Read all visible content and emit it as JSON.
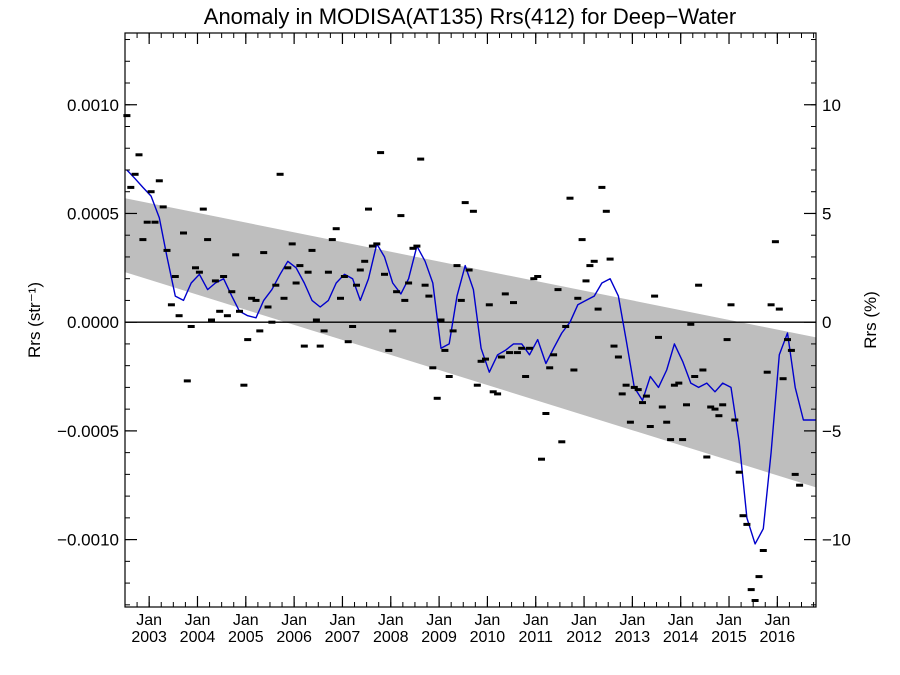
{
  "chart_data": {
    "type": "scatter",
    "title": "Anomaly in MODISA(AT135) Rrs(412) for Deep−Water",
    "ylabel_left": "Rrs (str⁻¹)",
    "ylabel_right": "Rrs (%)",
    "xlim": [
      2002.5,
      2016.8
    ],
    "ylim": [
      -0.00131,
      0.00133
    ],
    "ylim_right_percent": [
      -13.1,
      13.3
    ],
    "y_ticks": [
      {
        "value": 0.001,
        "label": "0.0010"
      },
      {
        "value": 0.0005,
        "label": "0.0005"
      },
      {
        "value": 0.0,
        "label": "0.0000"
      },
      {
        "value": -0.0005,
        "label": "−0.0005"
      },
      {
        "value": -0.001,
        "label": "−0.0010"
      }
    ],
    "y_right_ticks": [
      {
        "value": 10,
        "label": "10"
      },
      {
        "value": 5,
        "label": "5"
      },
      {
        "value": 0,
        "label": "0"
      },
      {
        "value": -5,
        "label": "−5"
      },
      {
        "value": -10,
        "label": "−10"
      }
    ],
    "x_ticks": [
      {
        "year": 2003,
        "month_label": "Jan",
        "year_label": "2003"
      },
      {
        "year": 2004,
        "month_label": "Jan",
        "year_label": "2004"
      },
      {
        "year": 2005,
        "month_label": "Jan",
        "year_label": "2005"
      },
      {
        "year": 2006,
        "month_label": "Jan",
        "year_label": "2006"
      },
      {
        "year": 2007,
        "month_label": "Jan",
        "year_label": "2007"
      },
      {
        "year": 2008,
        "month_label": "Jan",
        "year_label": "2008"
      },
      {
        "year": 2009,
        "month_label": "Jan",
        "year_label": "2009"
      },
      {
        "year": 2010,
        "month_label": "Jan",
        "year_label": "2010"
      },
      {
        "year": 2011,
        "month_label": "Jan",
        "year_label": "2011"
      },
      {
        "year": 2012,
        "month_label": "Jan",
        "year_label": "2012"
      },
      {
        "year": 2013,
        "month_label": "Jan",
        "year_label": "2013"
      },
      {
        "year": 2014,
        "month_label": "Jan",
        "year_label": "2014"
      },
      {
        "year": 2015,
        "month_label": "Jan",
        "year_label": "2015"
      },
      {
        "year": 2016,
        "month_label": "Jan",
        "year_label": "2016"
      }
    ],
    "zero_line": 0.0,
    "trend_band": {
      "x": [
        2002.5,
        2016.8
      ],
      "upper": [
        0.00057,
        -7e-05
      ],
      "lower": [
        0.00023,
        -0.00076
      ],
      "color": "#bebebe"
    },
    "series": [
      {
        "kind": "points",
        "color": "#000000",
        "points": [
          [
            2002.54,
            0.00095
          ],
          [
            2002.62,
            0.00062
          ],
          [
            2002.71,
            0.00068
          ],
          [
            2002.79,
            0.00077
          ],
          [
            2002.87,
            0.00038
          ],
          [
            2002.96,
            0.00046
          ],
          [
            2003.04,
            0.0006
          ],
          [
            2003.12,
            0.00046
          ],
          [
            2003.21,
            0.00065
          ],
          [
            2003.29,
            0.00053
          ],
          [
            2003.37,
            0.00033
          ],
          [
            2003.46,
            8e-05
          ],
          [
            2003.54,
            0.00021
          ],
          [
            2003.62,
            3e-05
          ],
          [
            2003.71,
            0.00041
          ],
          [
            2003.79,
            -0.00027
          ],
          [
            2003.87,
            -2e-05
          ],
          [
            2003.96,
            0.00025
          ],
          [
            2004.04,
            0.00023
          ],
          [
            2004.12,
            0.00052
          ],
          [
            2004.21,
            0.00038
          ],
          [
            2004.29,
            1e-05
          ],
          [
            2004.37,
            0.00019
          ],
          [
            2004.46,
            5e-05
          ],
          [
            2004.54,
            0.00021
          ],
          [
            2004.62,
            3e-05
          ],
          [
            2004.71,
            0.00014
          ],
          [
            2004.79,
            0.00031
          ],
          [
            2004.87,
            5e-05
          ],
          [
            2004.96,
            -0.00029
          ],
          [
            2005.04,
            -8e-05
          ],
          [
            2005.12,
            0.00011
          ],
          [
            2005.21,
            0.0001
          ],
          [
            2005.29,
            -4e-05
          ],
          [
            2005.37,
            0.00032
          ],
          [
            2005.46,
            7e-05
          ],
          [
            2005.54,
            0.0
          ],
          [
            2005.62,
            0.00017
          ],
          [
            2005.71,
            0.00068
          ],
          [
            2005.79,
            0.00011
          ],
          [
            2005.87,
            0.00025
          ],
          [
            2005.96,
            0.00036
          ],
          [
            2006.04,
            0.00018
          ],
          [
            2006.12,
            0.00026
          ],
          [
            2006.21,
            -0.00011
          ],
          [
            2006.29,
            0.00023
          ],
          [
            2006.37,
            0.00033
          ],
          [
            2006.46,
            1e-05
          ],
          [
            2006.54,
            -0.00011
          ],
          [
            2006.62,
            -4e-05
          ],
          [
            2006.71,
            0.00023
          ],
          [
            2006.79,
            0.00038
          ],
          [
            2006.87,
            0.00043
          ],
          [
            2006.96,
            0.00011
          ],
          [
            2007.04,
            0.00021
          ],
          [
            2007.12,
            -9e-05
          ],
          [
            2007.21,
            -2e-05
          ],
          [
            2007.29,
            0.00017
          ],
          [
            2007.37,
            0.00024
          ],
          [
            2007.46,
            0.00028
          ],
          [
            2007.54,
            0.00052
          ],
          [
            2007.62,
            0.00035
          ],
          [
            2007.71,
            0.00036
          ],
          [
            2007.79,
            0.00078
          ],
          [
            2007.87,
            0.00022
          ],
          [
            2007.96,
            -0.00013
          ],
          [
            2008.04,
            -4e-05
          ],
          [
            2008.12,
            0.00014
          ],
          [
            2008.21,
            0.00049
          ],
          [
            2008.29,
            0.0001
          ],
          [
            2008.37,
            0.00018
          ],
          [
            2008.46,
            0.00034
          ],
          [
            2008.54,
            0.00035
          ],
          [
            2008.62,
            0.00075
          ],
          [
            2008.71,
            0.00017
          ],
          [
            2008.79,
            0.00012
          ],
          [
            2008.87,
            -0.00021
          ],
          [
            2008.96,
            -0.00035
          ],
          [
            2009.04,
            1e-05
          ],
          [
            2009.12,
            -0.00013
          ],
          [
            2009.21,
            -0.00025
          ],
          [
            2009.29,
            -4e-05
          ],
          [
            2009.37,
            0.00026
          ],
          [
            2009.46,
            0.0001
          ],
          [
            2009.54,
            0.00055
          ],
          [
            2009.62,
            0.00024
          ],
          [
            2009.71,
            0.00051
          ],
          [
            2009.79,
            -0.00029
          ],
          [
            2009.87,
            -0.00018
          ],
          [
            2009.96,
            -0.00017
          ],
          [
            2010.04,
            8e-05
          ],
          [
            2010.12,
            -0.00032
          ],
          [
            2010.21,
            -0.00033
          ],
          [
            2010.29,
            -0.00016
          ],
          [
            2010.37,
            0.00013
          ],
          [
            2010.46,
            -0.00014
          ],
          [
            2010.54,
            9e-05
          ],
          [
            2010.62,
            -0.00014
          ],
          [
            2010.71,
            -0.00012
          ],
          [
            2010.79,
            -0.00025
          ],
          [
            2010.87,
            -0.00012
          ],
          [
            2010.96,
            0.0002
          ],
          [
            2011.04,
            0.00021
          ],
          [
            2011.12,
            -0.00063
          ],
          [
            2011.21,
            -0.00042
          ],
          [
            2011.29,
            -0.00021
          ],
          [
            2011.37,
            -0.00015
          ],
          [
            2011.46,
            0.00015
          ],
          [
            2011.54,
            -0.00055
          ],
          [
            2011.62,
            -2e-05
          ],
          [
            2011.71,
            0.00057
          ],
          [
            2011.79,
            -0.00022
          ],
          [
            2011.87,
            0.00011
          ],
          [
            2011.96,
            0.00038
          ],
          [
            2012.04,
            0.00019
          ],
          [
            2012.12,
            0.00026
          ],
          [
            2012.21,
            0.00028
          ],
          [
            2012.29,
            6e-05
          ],
          [
            2012.37,
            0.00062
          ],
          [
            2012.46,
            0.00051
          ],
          [
            2012.54,
            0.00029
          ],
          [
            2012.62,
            -0.00011
          ],
          [
            2012.71,
            -0.00016
          ],
          [
            2012.79,
            -0.00033
          ],
          [
            2012.87,
            -0.00029
          ],
          [
            2012.96,
            -0.00046
          ],
          [
            2013.04,
            -0.0003
          ],
          [
            2013.12,
            -0.00031
          ],
          [
            2013.21,
            -0.00037
          ],
          [
            2013.29,
            -0.00034
          ],
          [
            2013.37,
            -0.00048
          ],
          [
            2013.46,
            0.00012
          ],
          [
            2013.54,
            -7e-05
          ],
          [
            2013.62,
            -0.00039
          ],
          [
            2013.71,
            -0.00046
          ],
          [
            2013.79,
            -0.00054
          ],
          [
            2013.87,
            -0.00029
          ],
          [
            2013.96,
            -0.00028
          ],
          [
            2014.04,
            -0.00054
          ],
          [
            2014.12,
            -0.00038
          ],
          [
            2014.21,
            -1e-05
          ],
          [
            2014.29,
            -0.00025
          ],
          [
            2014.37,
            0.00017
          ],
          [
            2014.46,
            -0.00022
          ],
          [
            2014.54,
            -0.00062
          ],
          [
            2014.62,
            -0.00039
          ],
          [
            2014.71,
            -0.0004
          ],
          [
            2014.79,
            -0.00043
          ],
          [
            2014.87,
            -0.00038
          ],
          [
            2014.96,
            -8e-05
          ],
          [
            2015.04,
            8e-05
          ],
          [
            2015.12,
            -0.00045
          ],
          [
            2015.21,
            -0.00069
          ],
          [
            2015.29,
            -0.00089
          ],
          [
            2015.37,
            -0.00093
          ],
          [
            2015.46,
            -0.00123
          ],
          [
            2015.54,
            -0.00128
          ],
          [
            2015.62,
            -0.00117
          ],
          [
            2015.71,
            -0.00105
          ],
          [
            2015.79,
            -0.00023
          ],
          [
            2015.87,
            8e-05
          ],
          [
            2015.96,
            0.00037
          ],
          [
            2016.04,
            6e-05
          ],
          [
            2016.12,
            -0.00026
          ],
          [
            2016.21,
            -8e-05
          ],
          [
            2016.29,
            -0.00013
          ],
          [
            2016.37,
            -0.0007
          ],
          [
            2016.46,
            -0.00075
          ]
        ]
      },
      {
        "kind": "line",
        "color": "#0000cc",
        "points": [
          [
            2002.54,
            0.0007
          ],
          [
            2002.71,
            0.00066
          ],
          [
            2002.87,
            0.00062
          ],
          [
            2003.04,
            0.00058
          ],
          [
            2003.21,
            0.00048
          ],
          [
            2003.37,
            0.0003
          ],
          [
            2003.54,
            0.00012
          ],
          [
            2003.71,
            0.0001
          ],
          [
            2003.87,
            0.00018
          ],
          [
            2004.04,
            0.00022
          ],
          [
            2004.21,
            0.00015
          ],
          [
            2004.37,
            0.00018
          ],
          [
            2004.54,
            0.0002
          ],
          [
            2004.71,
            0.00012
          ],
          [
            2004.87,
            5e-05
          ],
          [
            2005.04,
            3e-05
          ],
          [
            2005.21,
            2e-05
          ],
          [
            2005.37,
            0.0001
          ],
          [
            2005.54,
            0.00015
          ],
          [
            2005.71,
            0.00022
          ],
          [
            2005.87,
            0.00028
          ],
          [
            2006.04,
            0.00025
          ],
          [
            2006.21,
            0.00018
          ],
          [
            2006.37,
            0.0001
          ],
          [
            2006.54,
            7e-05
          ],
          [
            2006.71,
            0.0001
          ],
          [
            2006.87,
            0.00018
          ],
          [
            2007.04,
            0.00022
          ],
          [
            2007.21,
            0.0002
          ],
          [
            2007.37,
            0.0001
          ],
          [
            2007.54,
            0.0002
          ],
          [
            2007.71,
            0.00036
          ],
          [
            2007.87,
            0.0003
          ],
          [
            2008.04,
            0.00018
          ],
          [
            2008.21,
            0.00013
          ],
          [
            2008.37,
            0.0002
          ],
          [
            2008.54,
            0.00035
          ],
          [
            2008.71,
            0.00028
          ],
          [
            2008.87,
            0.00018
          ],
          [
            2009.04,
            -0.00012
          ],
          [
            2009.21,
            -0.0001
          ],
          [
            2009.37,
            0.00012
          ],
          [
            2009.54,
            0.00026
          ],
          [
            2009.71,
            0.00015
          ],
          [
            2009.87,
            -0.00012
          ],
          [
            2010.04,
            -0.00023
          ],
          [
            2010.21,
            -0.00015
          ],
          [
            2010.37,
            -0.00013
          ],
          [
            2010.54,
            -0.0001
          ],
          [
            2010.71,
            -0.0001
          ],
          [
            2010.87,
            -0.00015
          ],
          [
            2011.04,
            -8e-05
          ],
          [
            2011.21,
            -0.00019
          ],
          [
            2011.37,
            -0.00012
          ],
          [
            2011.54,
            -5e-05
          ],
          [
            2011.71,
            0.0
          ],
          [
            2011.87,
            8e-05
          ],
          [
            2012.04,
            0.0001
          ],
          [
            2012.21,
            0.00012
          ],
          [
            2012.37,
            0.00018
          ],
          [
            2012.54,
            0.0002
          ],
          [
            2012.71,
            0.00012
          ],
          [
            2012.87,
            -8e-05
          ],
          [
            2013.04,
            -0.0003
          ],
          [
            2013.21,
            -0.00036
          ],
          [
            2013.37,
            -0.00025
          ],
          [
            2013.54,
            -0.0003
          ],
          [
            2013.71,
            -0.00022
          ],
          [
            2013.87,
            -0.0001
          ],
          [
            2014.04,
            -0.00018
          ],
          [
            2014.21,
            -0.00028
          ],
          [
            2014.37,
            -0.0003
          ],
          [
            2014.54,
            -0.00028
          ],
          [
            2014.71,
            -0.00032
          ],
          [
            2014.87,
            -0.00028
          ],
          [
            2015.04,
            -0.0003
          ],
          [
            2015.21,
            -0.00055
          ],
          [
            2015.37,
            -0.0009
          ],
          [
            2015.54,
            -0.00102
          ],
          [
            2015.71,
            -0.00095
          ],
          [
            2015.87,
            -0.0006
          ],
          [
            2016.04,
            -0.00015
          ],
          [
            2016.21,
            -5e-05
          ],
          [
            2016.37,
            -0.0003
          ],
          [
            2016.54,
            -0.00045
          ],
          [
            2016.8,
            -0.00045
          ]
        ]
      }
    ]
  }
}
